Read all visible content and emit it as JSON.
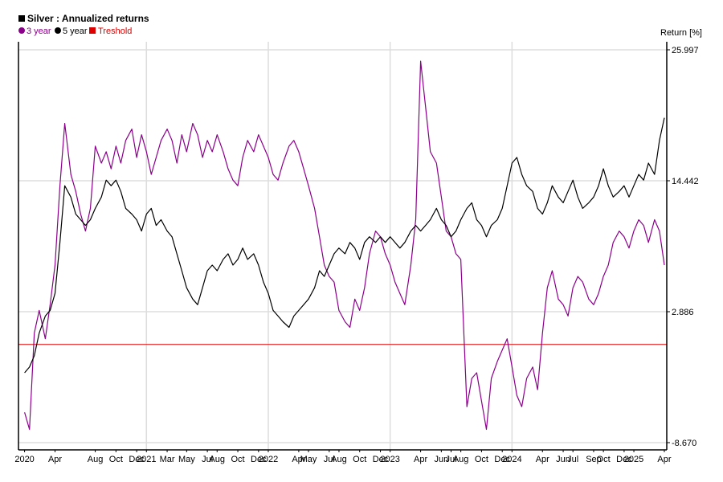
{
  "chart_data": {
    "type": "line",
    "title": "Silver : Annualized returns",
    "ylabel": "Return [%]",
    "grid": true,
    "legend_position": "top-left",
    "ylim": [
      -8.67,
      25.997
    ],
    "y_tick_labels": [
      "25.997",
      "14.442",
      "2.886",
      "-8.670"
    ],
    "y_tick_values": [
      25.997,
      14.442,
      2.886,
      -8.67
    ],
    "x_tick_labels": [
      "2020",
      "Apr",
      "Aug",
      "Oct",
      "Dec",
      "2021",
      "Mar",
      "May",
      "Jul",
      "Aug",
      "Oct",
      "Dec",
      "2022",
      "Apr",
      "May",
      "Jul",
      "Aug",
      "Oct",
      "Dec",
      "2023",
      "Apr",
      "Jun",
      "Jul",
      "Aug",
      "Oct",
      "Dec",
      "2024",
      "Apr",
      "Jun",
      "Jul",
      "Sep",
      "Oct",
      "Dec",
      "2025",
      "Apr"
    ],
    "x_tick_values": [
      2020.0,
      2020.25,
      2020.58,
      2020.75,
      2020.92,
      2021.0,
      2021.17,
      2021.33,
      2021.5,
      2021.58,
      2021.75,
      2021.92,
      2022.0,
      2022.25,
      2022.33,
      2022.5,
      2022.58,
      2022.75,
      2022.92,
      2023.0,
      2023.25,
      2023.42,
      2023.5,
      2023.58,
      2023.75,
      2023.92,
      2024.0,
      2024.25,
      2024.42,
      2024.5,
      2024.67,
      2024.75,
      2024.92,
      2025.0,
      2025.25
    ],
    "xlim": [
      2019.95,
      2025.27
    ],
    "x_grid_values": [
      2021.0,
      2022.0,
      2023.0,
      2024.0
    ],
    "threshold": {
      "name": "Treshold",
      "value": 0.0,
      "color": "#dd0000"
    },
    "series": [
      {
        "name": "3 year",
        "color": "#8b008b",
        "x": [
          2020.0,
          2020.04,
          2020.08,
          2020.12,
          2020.17,
          2020.21,
          2020.25,
          2020.29,
          2020.33,
          2020.38,
          2020.42,
          2020.46,
          2020.5,
          2020.54,
          2020.58,
          2020.63,
          2020.67,
          2020.71,
          2020.75,
          2020.79,
          2020.83,
          2020.88,
          2020.92,
          2020.96,
          2021.0,
          2021.04,
          2021.08,
          2021.12,
          2021.17,
          2021.21,
          2021.25,
          2021.29,
          2021.33,
          2021.38,
          2021.42,
          2021.46,
          2021.5,
          2021.54,
          2021.58,
          2021.63,
          2021.67,
          2021.71,
          2021.75,
          2021.79,
          2021.83,
          2021.88,
          2021.92,
          2021.96,
          2022.0,
          2022.04,
          2022.08,
          2022.12,
          2022.17,
          2022.21,
          2022.25,
          2022.29,
          2022.33,
          2022.38,
          2022.42,
          2022.46,
          2022.5,
          2022.54,
          2022.58,
          2022.63,
          2022.67,
          2022.71,
          2022.75,
          2022.79,
          2022.83,
          2022.88,
          2022.92,
          2022.96,
          2023.0,
          2023.04,
          2023.08,
          2023.12,
          2023.17,
          2023.21,
          2023.25,
          2023.29,
          2023.33,
          2023.38,
          2023.42,
          2023.46,
          2023.5,
          2023.54,
          2023.58,
          2023.63,
          2023.67,
          2023.71,
          2023.75,
          2023.79,
          2023.83,
          2023.88,
          2023.92,
          2023.96,
          2024.0,
          2024.04,
          2024.08,
          2024.12,
          2024.17,
          2024.21,
          2024.25,
          2024.29,
          2024.33,
          2024.38,
          2024.42,
          2024.46,
          2024.5,
          2024.54,
          2024.58,
          2024.63,
          2024.67,
          2024.71,
          2024.75,
          2024.79,
          2024.83,
          2024.88,
          2024.92,
          2024.96,
          2025.0,
          2025.04,
          2025.08,
          2025.12,
          2025.17,
          2025.21,
          2025.25
        ],
        "values": [
          -6.0,
          -7.5,
          1.0,
          3.0,
          0.5,
          3.5,
          7.0,
          14.0,
          19.5,
          15.0,
          13.5,
          11.5,
          10.0,
          12.0,
          17.5,
          16.0,
          17.0,
          15.5,
          17.5,
          16.0,
          18.0,
          19.0,
          16.5,
          18.5,
          17.0,
          15.0,
          16.5,
          18.0,
          19.0,
          18.0,
          16.0,
          18.5,
          17.0,
          19.5,
          18.5,
          16.5,
          18.0,
          17.0,
          18.5,
          17.0,
          15.5,
          14.5,
          14.0,
          16.5,
          18.0,
          17.0,
          18.5,
          17.5,
          16.5,
          15.0,
          14.5,
          16.0,
          17.5,
          18.0,
          17.0,
          15.5,
          14.0,
          12.0,
          9.5,
          7.0,
          6.0,
          5.5,
          3.0,
          2.0,
          1.5,
          4.0,
          3.0,
          5.0,
          8.0,
          10.0,
          9.5,
          8.0,
          7.0,
          5.5,
          4.5,
          3.5,
          7.0,
          11.0,
          25.0,
          21.0,
          17.0,
          16.0,
          13.0,
          10.0,
          9.5,
          8.0,
          7.5,
          -5.5,
          -3.0,
          -2.5,
          -5.0,
          -7.5,
          -3.0,
          -1.5,
          -0.5,
          0.5,
          -2.0,
          -4.5,
          -5.5,
          -3.0,
          -2.0,
          -4.0,
          1.0,
          5.0,
          6.5,
          4.0,
          3.5,
          2.5,
          5.0,
          6.0,
          5.5,
          4.0,
          3.5,
          4.5,
          6.0,
          7.0,
          9.0,
          10.0,
          9.5,
          8.5,
          10.0,
          11.0,
          10.5,
          9.0,
          11.0,
          10.0,
          7.0
        ]
      },
      {
        "name": "5 year",
        "color": "#000000",
        "x": [
          2020.0,
          2020.04,
          2020.08,
          2020.12,
          2020.17,
          2020.21,
          2020.25,
          2020.29,
          2020.33,
          2020.38,
          2020.42,
          2020.46,
          2020.5,
          2020.54,
          2020.58,
          2020.63,
          2020.67,
          2020.71,
          2020.75,
          2020.79,
          2020.83,
          2020.88,
          2020.92,
          2020.96,
          2021.0,
          2021.04,
          2021.08,
          2021.12,
          2021.17,
          2021.21,
          2021.25,
          2021.29,
          2021.33,
          2021.38,
          2021.42,
          2021.46,
          2021.5,
          2021.54,
          2021.58,
          2021.63,
          2021.67,
          2021.71,
          2021.75,
          2021.79,
          2021.83,
          2021.88,
          2021.92,
          2021.96,
          2022.0,
          2022.04,
          2022.08,
          2022.12,
          2022.17,
          2022.21,
          2022.25,
          2022.29,
          2022.33,
          2022.38,
          2022.42,
          2022.46,
          2022.5,
          2022.54,
          2022.58,
          2022.63,
          2022.67,
          2022.71,
          2022.75,
          2022.79,
          2022.83,
          2022.88,
          2022.92,
          2022.96,
          2023.0,
          2023.04,
          2023.08,
          2023.12,
          2023.17,
          2023.21,
          2023.25,
          2023.29,
          2023.33,
          2023.38,
          2023.42,
          2023.46,
          2023.5,
          2023.54,
          2023.58,
          2023.63,
          2023.67,
          2023.71,
          2023.75,
          2023.79,
          2023.83,
          2023.88,
          2023.92,
          2023.96,
          2024.0,
          2024.04,
          2024.08,
          2024.12,
          2024.17,
          2024.21,
          2024.25,
          2024.29,
          2024.33,
          2024.38,
          2024.42,
          2024.46,
          2024.5,
          2024.54,
          2024.58,
          2024.63,
          2024.67,
          2024.71,
          2024.75,
          2024.79,
          2024.83,
          2024.88,
          2024.92,
          2024.96,
          2025.0,
          2025.04,
          2025.08,
          2025.12,
          2025.17,
          2025.21,
          2025.25
        ],
        "values": [
          -2.5,
          -2.0,
          -1.0,
          1.0,
          2.5,
          3.0,
          4.5,
          9.0,
          14.0,
          13.0,
          11.5,
          11.0,
          10.5,
          11.0,
          12.0,
          13.0,
          14.5,
          14.0,
          14.5,
          13.5,
          12.0,
          11.5,
          11.0,
          10.0,
          11.5,
          12.0,
          10.5,
          11.0,
          10.0,
          9.5,
          8.0,
          6.5,
          5.0,
          4.0,
          3.5,
          5.0,
          6.5,
          7.0,
          6.5,
          7.5,
          8.0,
          7.0,
          7.5,
          8.5,
          7.5,
          8.0,
          7.0,
          5.5,
          4.5,
          3.0,
          2.5,
          2.0,
          1.5,
          2.5,
          3.0,
          3.5,
          4.0,
          5.0,
          6.5,
          6.0,
          7.0,
          8.0,
          8.5,
          8.0,
          9.0,
          8.5,
          7.5,
          9.0,
          9.5,
          9.0,
          9.5,
          9.0,
          9.5,
          9.0,
          8.5,
          9.0,
          10.0,
          10.5,
          10.0,
          10.5,
          11.0,
          12.0,
          11.0,
          10.5,
          9.5,
          10.0,
          11.0,
          12.0,
          12.5,
          11.0,
          10.5,
          9.5,
          10.5,
          11.0,
          12.0,
          14.0,
          16.0,
          16.5,
          15.0,
          14.0,
          13.5,
          12.0,
          11.5,
          12.5,
          14.0,
          13.0,
          12.5,
          13.5,
          14.5,
          13.0,
          12.0,
          12.5,
          13.0,
          14.0,
          15.5,
          14.0,
          13.0,
          13.5,
          14.0,
          13.0,
          14.0,
          15.0,
          14.5,
          16.0,
          15.0,
          18.0,
          20.0
        ]
      }
    ]
  }
}
